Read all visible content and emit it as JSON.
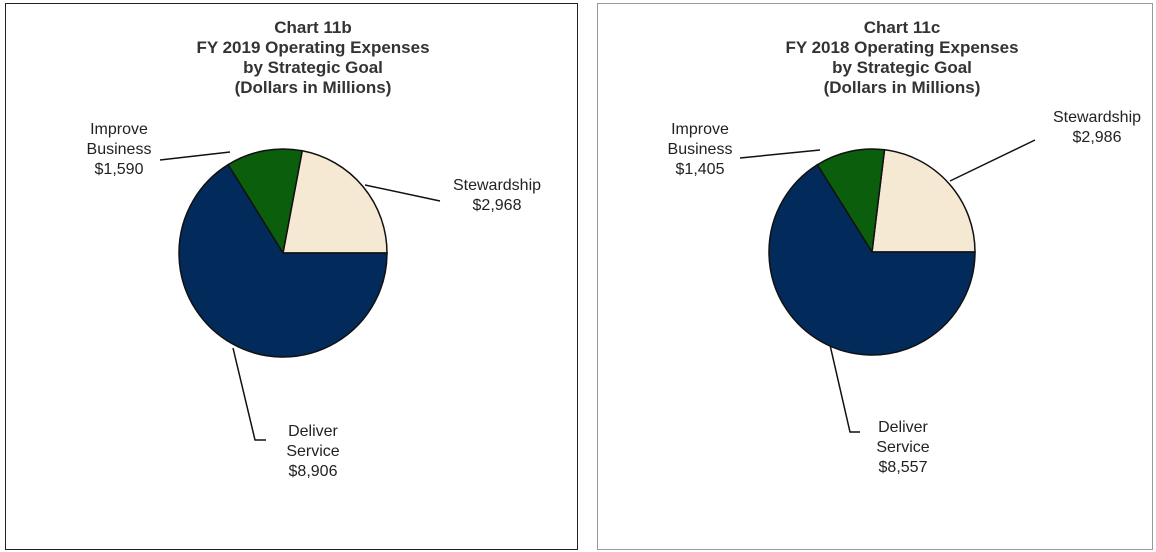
{
  "chart_data": [
    {
      "type": "pie",
      "title": [
        "Chart 11b",
        "FY 2019 Operating Expenses",
        "by Strategic Goal",
        "(Dollars in Millions)"
      ],
      "categories": [
        "Stewardship",
        "Improve Business",
        "Deliver Service"
      ],
      "values": [
        2968,
        1590,
        8906
      ],
      "value_labels": [
        "$2,968",
        "$1,590",
        "$8,906"
      ],
      "colors": [
        "#f5e9d3",
        "#0b5e0b",
        "#022a5a"
      ]
    },
    {
      "type": "pie",
      "title": [
        "Chart 11c",
        "FY 2018 Operating Expenses",
        "by Strategic Goal",
        "(Dollars in Millions)"
      ],
      "categories": [
        "Stewardship",
        "Improve Business",
        "Deliver Service"
      ],
      "values": [
        2986,
        1405,
        8557
      ],
      "value_labels": [
        "$2,986",
        "$1,405",
        "$8,557"
      ],
      "colors": [
        "#f5e9d3",
        "#0b5e0b",
        "#022a5a"
      ]
    }
  ]
}
